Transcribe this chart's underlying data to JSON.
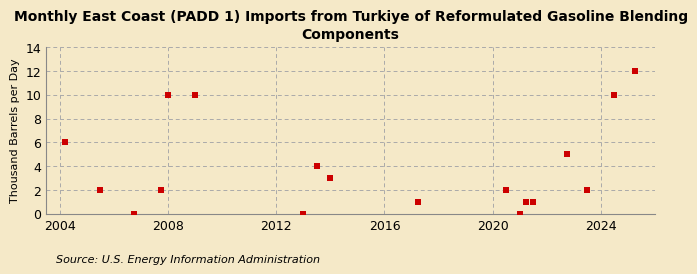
{
  "title": "Monthly East Coast (PADD 1) Imports from Turkiye of Reformulated Gasoline Blending\nComponents",
  "ylabel": "Thousand Barrels per Day",
  "source": "Source: U.S. Energy Information Administration",
  "background_color": "#f5e9c8",
  "plot_bg_color": "#f5e9c8",
  "marker_color": "#cc0000",
  "marker": "s",
  "marker_size": 4,
  "xlim": [
    2003.5,
    2026.0
  ],
  "ylim": [
    0,
    14
  ],
  "yticks": [
    0,
    2,
    4,
    6,
    8,
    10,
    12,
    14
  ],
  "xticks": [
    2004,
    2008,
    2012,
    2016,
    2020,
    2024
  ],
  "data_x": [
    2004.2,
    2005.5,
    2006.75,
    2007.75,
    2008.0,
    2009.0,
    2013.0,
    2013.5,
    2014.0,
    2017.25,
    2020.5,
    2021.0,
    2021.25,
    2021.5,
    2022.75,
    2023.5,
    2024.5,
    2025.25
  ],
  "data_y": [
    6,
    2,
    0,
    2,
    10,
    10,
    0,
    4,
    3,
    1,
    2,
    0,
    1,
    1,
    5,
    2,
    10,
    12
  ],
  "grid_color": "#aaaaaa",
  "grid_linestyle": "--",
  "title_fontsize": 10,
  "axis_fontsize": 8,
  "tick_fontsize": 9,
  "source_fontsize": 8
}
